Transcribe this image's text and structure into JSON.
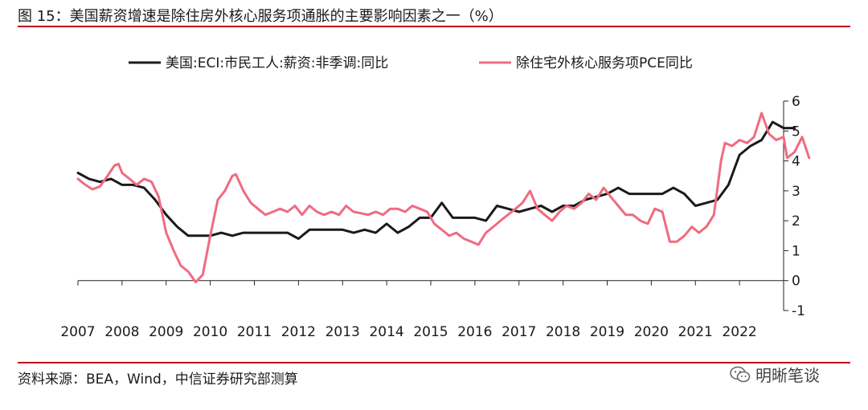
{
  "header": {
    "title": "图 15：美国薪资增速是除住房外核心服务项通胀的主要影响因素之一（%）"
  },
  "footer": {
    "source": "资料来源：BEA，Wind，中信证券研究部测算",
    "watermark": "明晰笔谈"
  },
  "colors": {
    "rule": "#c2001a",
    "series_eci": "#1a1a1a",
    "series_pce": "#f06b80"
  },
  "chart_data": {
    "type": "line",
    "title": "美国薪资增速是除住房外核心服务项通胀的主要影响因素之一（%）",
    "xlabel": "",
    "ylabel": "",
    "xlim": [
      2007,
      2023
    ],
    "ylim": [
      -1,
      6
    ],
    "x_ticks": [
      "2007",
      "2008",
      "2009",
      "2010",
      "2011",
      "2012",
      "2013",
      "2014",
      "2015",
      "2016",
      "2017",
      "2018",
      "2019",
      "2020",
      "2021",
      "2022"
    ],
    "y_ticks": [
      -1,
      0,
      1,
      2,
      3,
      4,
      5,
      6
    ],
    "legend_position": "top",
    "grid": false,
    "series": [
      {
        "name": "美国:ECI:市民工人:薪资:非季调:同比",
        "color": "#1a1a1a",
        "points": [
          [
            2007.0,
            3.6
          ],
          [
            2007.25,
            3.4
          ],
          [
            2007.5,
            3.3
          ],
          [
            2007.75,
            3.4
          ],
          [
            2008.0,
            3.2
          ],
          [
            2008.25,
            3.2
          ],
          [
            2008.5,
            3.1
          ],
          [
            2008.75,
            2.7
          ],
          [
            2009.0,
            2.2
          ],
          [
            2009.25,
            1.8
          ],
          [
            2009.5,
            1.5
          ],
          [
            2009.75,
            1.5
          ],
          [
            2010.0,
            1.5
          ],
          [
            2010.25,
            1.6
          ],
          [
            2010.5,
            1.5
          ],
          [
            2010.75,
            1.6
          ],
          [
            2011.0,
            1.6
          ],
          [
            2011.25,
            1.6
          ],
          [
            2011.5,
            1.6
          ],
          [
            2011.75,
            1.6
          ],
          [
            2012.0,
            1.4
          ],
          [
            2012.25,
            1.7
          ],
          [
            2012.5,
            1.7
          ],
          [
            2012.75,
            1.7
          ],
          [
            2013.0,
            1.7
          ],
          [
            2013.25,
            1.6
          ],
          [
            2013.5,
            1.7
          ],
          [
            2013.75,
            1.6
          ],
          [
            2014.0,
            1.9
          ],
          [
            2014.25,
            1.6
          ],
          [
            2014.5,
            1.8
          ],
          [
            2014.75,
            2.1
          ],
          [
            2015.0,
            2.1
          ],
          [
            2015.25,
            2.6
          ],
          [
            2015.5,
            2.1
          ],
          [
            2015.75,
            2.1
          ],
          [
            2016.0,
            2.1
          ],
          [
            2016.25,
            2.0
          ],
          [
            2016.5,
            2.5
          ],
          [
            2016.75,
            2.4
          ],
          [
            2017.0,
            2.3
          ],
          [
            2017.25,
            2.4
          ],
          [
            2017.5,
            2.5
          ],
          [
            2017.75,
            2.3
          ],
          [
            2018.0,
            2.5
          ],
          [
            2018.25,
            2.5
          ],
          [
            2018.5,
            2.7
          ],
          [
            2018.75,
            2.8
          ],
          [
            2019.0,
            2.9
          ],
          [
            2019.25,
            3.1
          ],
          [
            2019.5,
            2.9
          ],
          [
            2019.75,
            2.9
          ],
          [
            2020.0,
            2.9
          ],
          [
            2020.25,
            2.9
          ],
          [
            2020.5,
            3.1
          ],
          [
            2020.75,
            2.9
          ],
          [
            2021.0,
            2.5
          ],
          [
            2021.25,
            2.6
          ],
          [
            2021.5,
            2.7
          ],
          [
            2021.75,
            3.2
          ],
          [
            2022.0,
            4.2
          ],
          [
            2022.25,
            4.5
          ],
          [
            2022.5,
            4.7
          ],
          [
            2022.75,
            5.3
          ],
          [
            2023.0,
            5.1
          ],
          [
            2023.25,
            5.1
          ]
        ]
      },
      {
        "name": "除住宅外核心服务项PCE同比",
        "color": "#f06b80",
        "points": [
          [
            2007.0,
            3.4
          ],
          [
            2007.17,
            3.2
          ],
          [
            2007.33,
            3.05
          ],
          [
            2007.5,
            3.15
          ],
          [
            2007.67,
            3.5
          ],
          [
            2007.83,
            3.85
          ],
          [
            2007.92,
            3.9
          ],
          [
            2008.0,
            3.6
          ],
          [
            2008.17,
            3.4
          ],
          [
            2008.33,
            3.2
          ],
          [
            2008.5,
            3.4
          ],
          [
            2008.67,
            3.3
          ],
          [
            2008.83,
            2.8
          ],
          [
            2009.0,
            1.6
          ],
          [
            2009.17,
            1.0
          ],
          [
            2009.33,
            0.5
          ],
          [
            2009.5,
            0.3
          ],
          [
            2009.67,
            -0.05
          ],
          [
            2009.83,
            0.2
          ],
          [
            2010.0,
            1.5
          ],
          [
            2010.17,
            2.7
          ],
          [
            2010.33,
            3.0
          ],
          [
            2010.5,
            3.5
          ],
          [
            2010.58,
            3.55
          ],
          [
            2010.75,
            3.0
          ],
          [
            2010.92,
            2.6
          ],
          [
            2011.08,
            2.4
          ],
          [
            2011.25,
            2.2
          ],
          [
            2011.42,
            2.3
          ],
          [
            2011.58,
            2.4
          ],
          [
            2011.75,
            2.3
          ],
          [
            2011.92,
            2.5
          ],
          [
            2012.08,
            2.2
          ],
          [
            2012.25,
            2.5
          ],
          [
            2012.42,
            2.3
          ],
          [
            2012.58,
            2.2
          ],
          [
            2012.75,
            2.3
          ],
          [
            2012.92,
            2.2
          ],
          [
            2013.08,
            2.5
          ],
          [
            2013.25,
            2.3
          ],
          [
            2013.42,
            2.25
          ],
          [
            2013.58,
            2.2
          ],
          [
            2013.75,
            2.3
          ],
          [
            2013.92,
            2.2
          ],
          [
            2014.08,
            2.4
          ],
          [
            2014.25,
            2.4
          ],
          [
            2014.42,
            2.3
          ],
          [
            2014.58,
            2.5
          ],
          [
            2014.75,
            2.4
          ],
          [
            2014.92,
            2.3
          ],
          [
            2015.08,
            1.9
          ],
          [
            2015.25,
            1.7
          ],
          [
            2015.42,
            1.5
          ],
          [
            2015.58,
            1.6
          ],
          [
            2015.75,
            1.4
          ],
          [
            2015.92,
            1.3
          ],
          [
            2016.08,
            1.2
          ],
          [
            2016.25,
            1.6
          ],
          [
            2016.42,
            1.8
          ],
          [
            2016.58,
            2.0
          ],
          [
            2016.75,
            2.2
          ],
          [
            2016.92,
            2.4
          ],
          [
            2017.08,
            2.6
          ],
          [
            2017.25,
            3.0
          ],
          [
            2017.42,
            2.4
          ],
          [
            2017.58,
            2.2
          ],
          [
            2017.75,
            2.0
          ],
          [
            2017.92,
            2.3
          ],
          [
            2018.08,
            2.5
          ],
          [
            2018.25,
            2.4
          ],
          [
            2018.42,
            2.6
          ],
          [
            2018.58,
            2.9
          ],
          [
            2018.75,
            2.7
          ],
          [
            2018.92,
            3.1
          ],
          [
            2019.08,
            2.8
          ],
          [
            2019.25,
            2.5
          ],
          [
            2019.42,
            2.2
          ],
          [
            2019.58,
            2.2
          ],
          [
            2019.75,
            2.0
          ],
          [
            2019.92,
            1.9
          ],
          [
            2020.08,
            2.4
          ],
          [
            2020.25,
            2.3
          ],
          [
            2020.42,
            1.3
          ],
          [
            2020.58,
            1.3
          ],
          [
            2020.75,
            1.5
          ],
          [
            2020.92,
            1.8
          ],
          [
            2021.08,
            1.6
          ],
          [
            2021.25,
            1.8
          ],
          [
            2021.42,
            2.2
          ],
          [
            2021.58,
            4.0
          ],
          [
            2021.67,
            4.6
          ],
          [
            2021.83,
            4.5
          ],
          [
            2022.0,
            4.7
          ],
          [
            2022.17,
            4.6
          ],
          [
            2022.33,
            4.8
          ],
          [
            2022.5,
            5.6
          ],
          [
            2022.67,
            4.9
          ],
          [
            2022.83,
            4.7
          ],
          [
            2023.0,
            4.8
          ],
          [
            2023.08,
            4.1
          ],
          [
            2023.25,
            4.3
          ],
          [
            2023.42,
            4.8
          ],
          [
            2023.58,
            4.1
          ]
        ]
      }
    ]
  }
}
